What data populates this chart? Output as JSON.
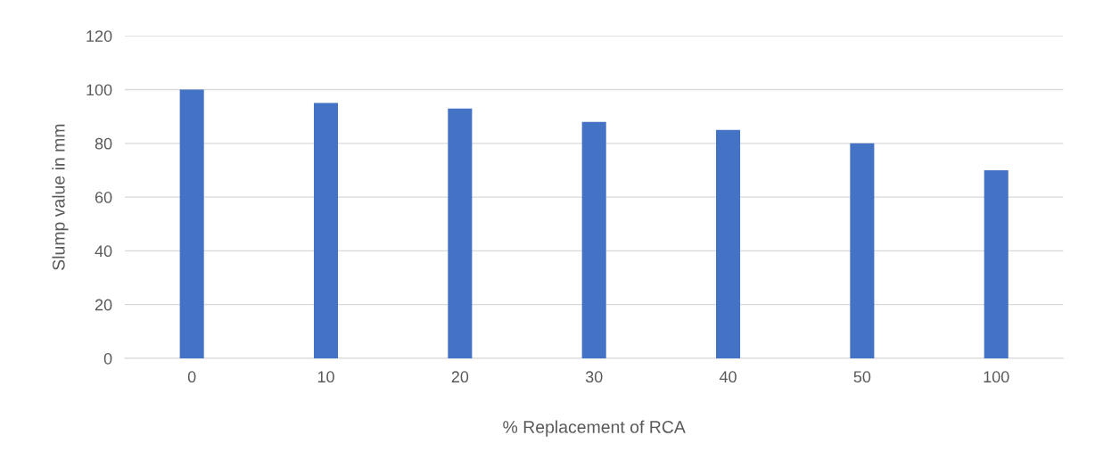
{
  "chart_data": {
    "type": "bar",
    "xlabel": "% Replacement of RCA",
    "ylabel": "Slump value in mm",
    "categories": [
      "0",
      "10",
      "20",
      "30",
      "40",
      "50",
      "100"
    ],
    "values": [
      100,
      95,
      93,
      88,
      85,
      80,
      70
    ],
    "color": "#4472c4",
    "ylim": [
      0,
      120
    ],
    "yticks": [
      0,
      20,
      40,
      60,
      80,
      100,
      120
    ],
    "grid": "y",
    "legend": false
  }
}
